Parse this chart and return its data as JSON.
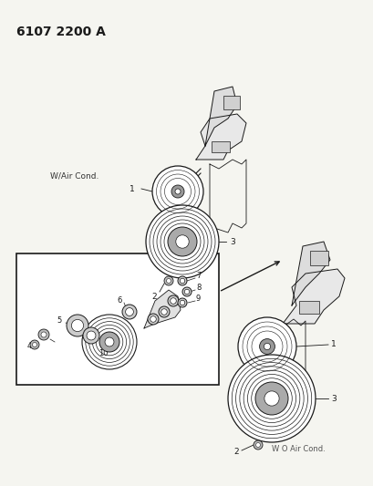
{
  "title": "6107 2200 A",
  "bg_color": "#f5f5f0",
  "line_color": "#1a1a1a",
  "label_color": "#1a1a1a",
  "title_fontsize": 10,
  "label_fontsize": 6.5,
  "w_air_cond_text": "W/Air Cond.",
  "wo_air_cond_text": "W O Air Cond.",
  "figsize": [
    4.1,
    5.33
  ],
  "dpi": 100
}
